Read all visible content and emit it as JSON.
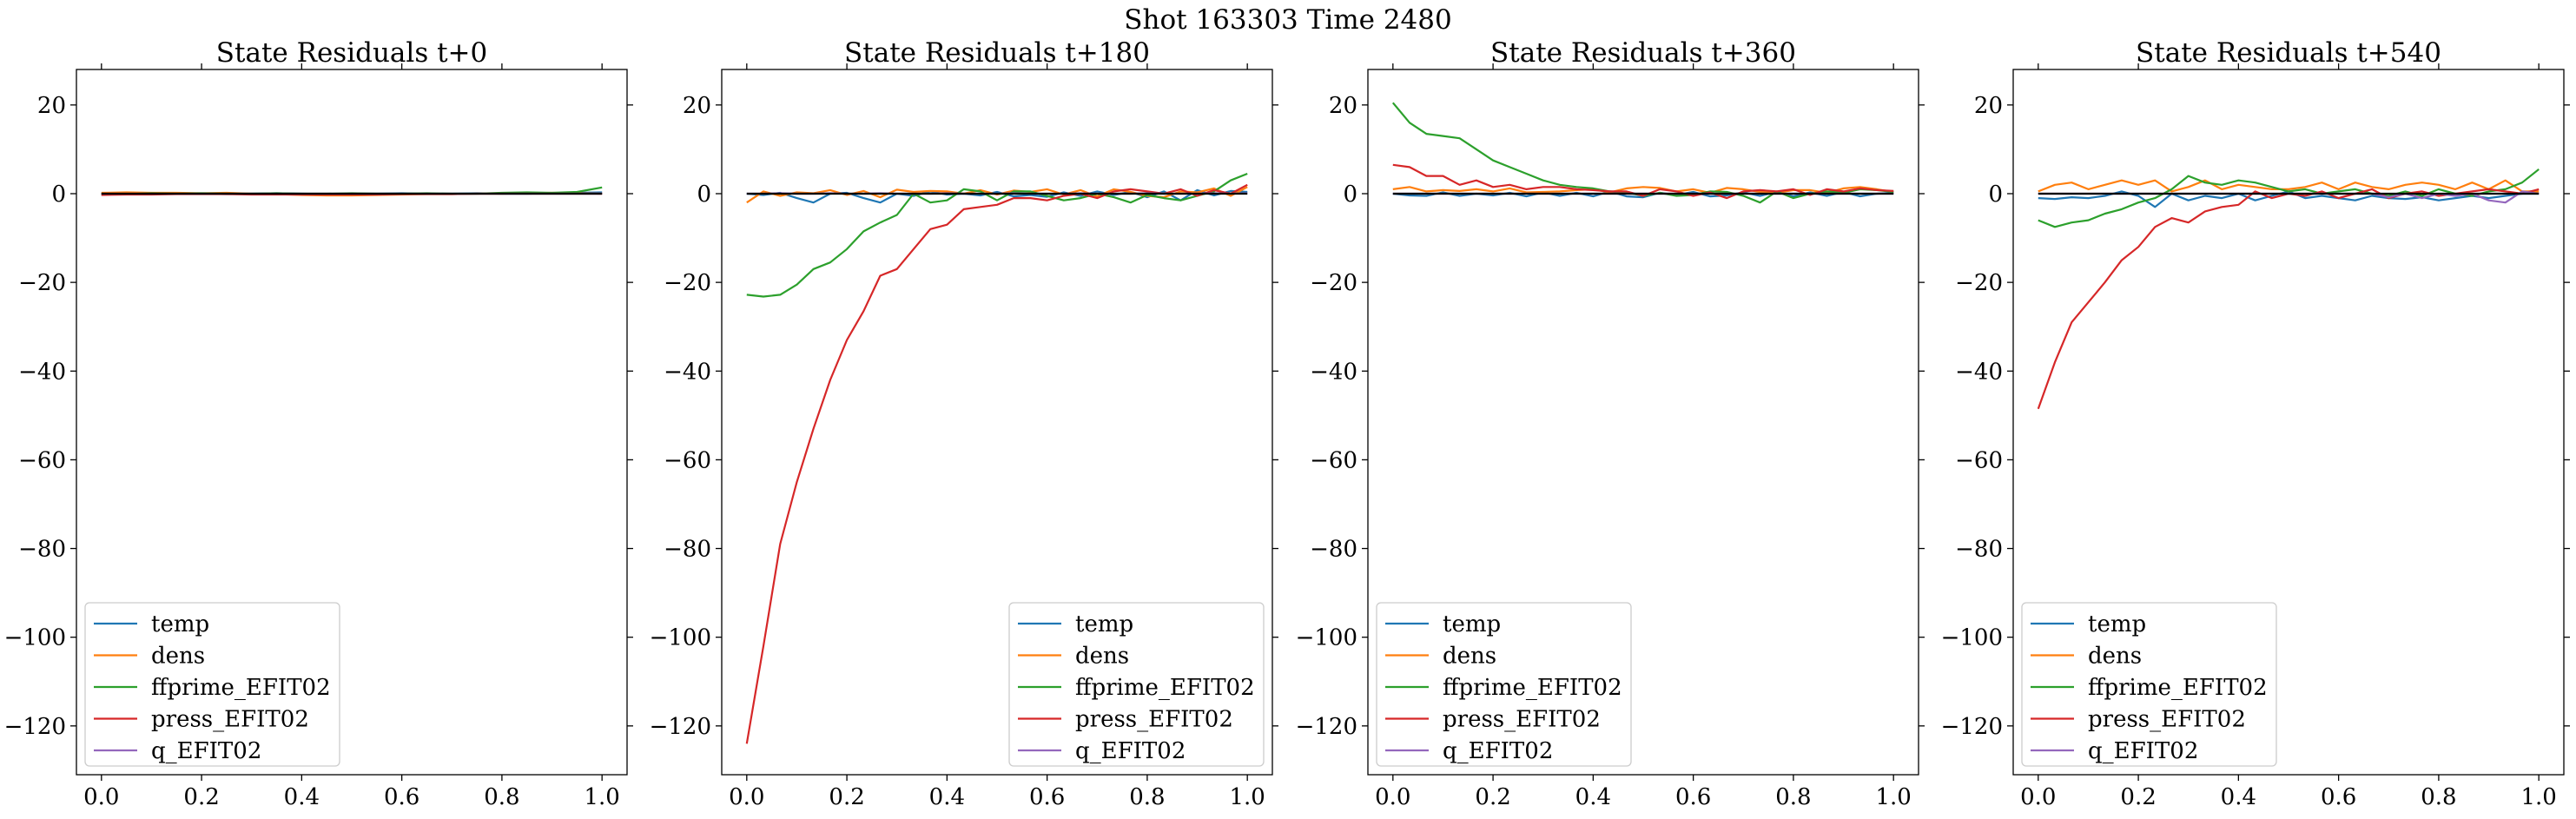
{
  "figure": {
    "title": "Shot 163303   Time 2480"
  },
  "colors": {
    "temp": "#1f77b4",
    "dens": "#ff7f0e",
    "ffprime_EFIT02": "#2ca02c",
    "press_EFIT02": "#d62728",
    "q_EFIT02": "#9467bd",
    "zero_line": "#000000"
  },
  "chart_data": [
    {
      "type": "line",
      "title": "State Residuals t+0",
      "xlabel": "",
      "ylabel": "",
      "xlim": [
        -0.05,
        1.05
      ],
      "ylim": [
        -131,
        28
      ],
      "xticks": [
        "0.0",
        "0.2",
        "0.4",
        "0.6",
        "0.8",
        "1.0"
      ],
      "yticks": [
        "20",
        "0",
        "−20",
        "−40",
        "−60",
        "−80",
        "−100",
        "−120"
      ],
      "legend_position": "lower-left",
      "grid": false,
      "x": [
        0.0,
        0.05,
        0.1,
        0.15,
        0.2,
        0.25,
        0.3,
        0.35,
        0.4,
        0.45,
        0.5,
        0.55,
        0.6,
        0.65,
        0.7,
        0.75,
        0.8,
        0.85,
        0.9,
        0.95,
        1.0
      ],
      "series": [
        {
          "name": "temp",
          "values": [
            -0.2,
            -0.1,
            0.0,
            0.1,
            0.0,
            -0.1,
            0.0,
            0.1,
            0.0,
            -0.1,
            0.0,
            0.0,
            0.1,
            0.0,
            0.0,
            0.1,
            0.0,
            0.0,
            0.1,
            0.2,
            0.3
          ]
        },
        {
          "name": "dens",
          "values": [
            0.2,
            0.3,
            0.2,
            0.2,
            0.1,
            0.2,
            0.0,
            -0.1,
            -0.3,
            -0.4,
            -0.4,
            -0.3,
            -0.2,
            -0.1,
            -0.1,
            0.0,
            0.0,
            0.1,
            0.2,
            0.1,
            0.0
          ]
        },
        {
          "name": "ffprime_EFIT02",
          "values": [
            0.0,
            -0.1,
            0.1,
            0.0,
            0.1,
            0.0,
            0.0,
            0.1,
            0.0,
            0.0,
            0.1,
            0.0,
            0.0,
            0.1,
            0.0,
            0.0,
            0.2,
            0.3,
            0.2,
            0.4,
            1.4
          ]
        },
        {
          "name": "press_EFIT02",
          "values": [
            -0.3,
            -0.2,
            -0.2,
            -0.1,
            -0.1,
            -0.1,
            -0.2,
            -0.2,
            -0.2,
            -0.2,
            -0.2,
            -0.2,
            -0.1,
            -0.1,
            -0.1,
            0.0,
            0.0,
            0.0,
            0.0,
            0.0,
            0.0
          ]
        },
        {
          "name": "q_EFIT02",
          "values": [
            0.0,
            0.0,
            0.0,
            0.0,
            0.0,
            0.0,
            0.0,
            0.0,
            0.0,
            0.0,
            0.0,
            0.0,
            0.0,
            0.0,
            0.0,
            0.0,
            0.0,
            0.0,
            0.0,
            0.0,
            0.0
          ]
        }
      ]
    },
    {
      "type": "line",
      "title": "State Residuals t+180",
      "xlabel": "",
      "ylabel": "",
      "xlim": [
        -0.05,
        1.05
      ],
      "ylim": [
        -131,
        28
      ],
      "xticks": [
        "0.0",
        "0.2",
        "0.4",
        "0.6",
        "0.8",
        "1.0"
      ],
      "yticks": [
        "20",
        "0",
        "−20",
        "−40",
        "−60",
        "−80",
        "−100",
        "−120"
      ],
      "legend_position": "lower-right",
      "grid": false,
      "x": [
        0.0,
        0.0333,
        0.0667,
        0.1,
        0.1333,
        0.1667,
        0.2,
        0.2333,
        0.2667,
        0.3,
        0.3333,
        0.3667,
        0.4,
        0.4333,
        0.4667,
        0.5,
        0.5333,
        0.5667,
        0.6,
        0.6333,
        0.6667,
        0.7,
        0.7333,
        0.7667,
        0.8,
        0.8333,
        0.8667,
        0.9,
        0.9333,
        0.9667,
        1.0
      ],
      "series": [
        {
          "name": "temp",
          "values": [
            0.0,
            -0.3,
            0.2,
            -1.0,
            -2.0,
            0.0,
            0.2,
            -1.0,
            -2.0,
            0.0,
            -0.5,
            0.5,
            -0.2,
            0.0,
            -0.4,
            0.4,
            -0.6,
            -0.3,
            -0.7,
            0.3,
            -0.5,
            0.5,
            -0.3,
            0.4,
            -0.8,
            0.5,
            -1.5,
            0.8,
            -0.4,
            0.6,
            0.4
          ]
        },
        {
          "name": "dens",
          "values": [
            -2.0,
            0.5,
            -0.5,
            0.3,
            0.1,
            0.8,
            -0.3,
            0.6,
            -0.8,
            0.9,
            0.4,
            0.6,
            0.5,
            0.0,
            0.8,
            -0.2,
            0.7,
            0.4,
            1.0,
            -0.2,
            0.8,
            -0.6,
            1.0,
            0.4,
            -0.5,
            -0.8,
            0.5,
            0.3,
            1.2,
            -0.5,
            1.5
          ]
        },
        {
          "name": "ffprime_EFIT02",
          "values": [
            -22.8,
            -23.2,
            -22.8,
            -20.5,
            -17.0,
            -15.5,
            -12.5,
            -8.5,
            -6.5,
            -4.8,
            0.0,
            -2.0,
            -1.5,
            1.0,
            0.5,
            -1.5,
            0.5,
            0.5,
            -0.5,
            -1.5,
            -1.0,
            0.0,
            -0.8,
            -2.0,
            -0.3,
            -1.0,
            -1.5,
            -0.5,
            0.5,
            3.0,
            4.5
          ]
        },
        {
          "name": "press_EFIT02",
          "values": [
            -124.0,
            -102.0,
            -79.0,
            -65.0,
            -53.0,
            -42.0,
            -33.0,
            -26.5,
            -18.5,
            -17.0,
            -12.5,
            -8.0,
            -7.0,
            -3.5,
            -3.0,
            -2.5,
            -1.0,
            -1.0,
            -1.5,
            -0.5,
            0.0,
            -1.0,
            0.5,
            1.0,
            0.5,
            0.0,
            1.0,
            -0.5,
            0.8,
            0.0,
            2.0
          ]
        },
        {
          "name": "q_EFIT02",
          "values": [
            0.0,
            0.0,
            0.1,
            0.0,
            0.0,
            0.1,
            0.0,
            0.0,
            0.1,
            0.0,
            0.0,
            0.0,
            0.1,
            0.0,
            0.0,
            0.0,
            0.1,
            0.0,
            0.0,
            0.0,
            0.1,
            0.0,
            0.0,
            0.0,
            0.1,
            0.0,
            0.0,
            0.0,
            0.1,
            0.0,
            0.1
          ]
        }
      ]
    },
    {
      "type": "line",
      "title": "State Residuals t+360",
      "xlabel": "",
      "ylabel": "",
      "xlim": [
        -0.05,
        1.05
      ],
      "ylim": [
        -131,
        28
      ],
      "xticks": [
        "0.0",
        "0.2",
        "0.4",
        "0.6",
        "0.8",
        "1.0"
      ],
      "yticks": [
        "20",
        "0",
        "−20",
        "−40",
        "−60",
        "−80",
        "−100",
        "−120"
      ],
      "legend_position": "lower-left",
      "grid": false,
      "x": [
        0.0,
        0.0333,
        0.0667,
        0.1,
        0.1333,
        0.1667,
        0.2,
        0.2333,
        0.2667,
        0.3,
        0.3333,
        0.3667,
        0.4,
        0.4333,
        0.4667,
        0.5,
        0.5333,
        0.5667,
        0.6,
        0.6333,
        0.6667,
        0.7,
        0.7333,
        0.7667,
        0.8,
        0.8333,
        0.8667,
        0.9,
        0.9333,
        0.9667,
        1.0
      ],
      "series": [
        {
          "name": "temp",
          "values": [
            0.0,
            -0.4,
            -0.5,
            0.3,
            -0.5,
            0.0,
            -0.4,
            0.2,
            -0.6,
            0.3,
            -0.5,
            0.2,
            -0.6,
            0.5,
            -0.6,
            -0.8,
            0.2,
            -0.3,
            0.4,
            -0.6,
            -0.4,
            0.3,
            -0.5,
            0.4,
            -0.6,
            0.3,
            -0.5,
            0.4,
            -0.6,
            0.0,
            0.2
          ]
        },
        {
          "name": "dens",
          "values": [
            1.0,
            1.5,
            0.5,
            0.8,
            0.6,
            1.0,
            0.5,
            1.2,
            0.3,
            0.4,
            0.5,
            0.8,
            1.0,
            0.3,
            1.2,
            1.5,
            1.3,
            0.5,
            1.0,
            0.2,
            1.3,
            1.0,
            0.4,
            0.2,
            0.8,
            0.8,
            0.2,
            1.2,
            1.5,
            1.0,
            0.4
          ]
        },
        {
          "name": "ffprime_EFIT02",
          "values": [
            20.5,
            16.0,
            13.5,
            13.0,
            12.5,
            10.0,
            7.5,
            6.0,
            4.5,
            3.0,
            2.0,
            1.5,
            1.2,
            0.5,
            0.3,
            -0.5,
            0.2,
            -0.5,
            -0.3,
            0.5,
            0.4,
            -0.5,
            -2.0,
            0.5,
            -1.0,
            0.0,
            0.5,
            0.2,
            1.0,
            0.8,
            0.4
          ]
        },
        {
          "name": "press_EFIT02",
          "values": [
            6.5,
            6.0,
            4.0,
            4.0,
            2.0,
            3.0,
            1.5,
            2.0,
            1.0,
            1.5,
            1.5,
            1.0,
            0.8,
            0.5,
            0.5,
            -0.5,
            1.0,
            0.5,
            -0.5,
            0.3,
            -1.0,
            0.5,
            0.8,
            0.5,
            1.0,
            -0.3,
            1.0,
            0.5,
            1.2,
            0.8,
            0.6
          ]
        },
        {
          "name": "q_EFIT02",
          "values": [
            0.0,
            0.0,
            0.0,
            0.0,
            0.0,
            0.0,
            0.0,
            0.0,
            0.0,
            0.0,
            0.0,
            0.0,
            0.0,
            0.0,
            0.0,
            0.0,
            0.0,
            0.0,
            0.0,
            0.0,
            0.0,
            0.0,
            0.0,
            0.0,
            0.0,
            0.0,
            0.0,
            0.0,
            0.0,
            0.0,
            0.0
          ]
        }
      ]
    },
    {
      "type": "line",
      "title": "State Residuals t+540",
      "xlabel": "",
      "ylabel": "",
      "xlim": [
        -0.05,
        1.05
      ],
      "ylim": [
        -131,
        28
      ],
      "xticks": [
        "0.0",
        "0.2",
        "0.4",
        "0.6",
        "0.8",
        "1.0"
      ],
      "yticks": [
        "20",
        "0",
        "−20",
        "−40",
        "−60",
        "−80",
        "−100",
        "−120"
      ],
      "legend_position": "lower-left",
      "grid": false,
      "x": [
        0.0,
        0.0333,
        0.0667,
        0.1,
        0.1333,
        0.1667,
        0.2,
        0.2333,
        0.2667,
        0.3,
        0.3333,
        0.3667,
        0.4,
        0.4333,
        0.4667,
        0.5,
        0.5333,
        0.5667,
        0.6,
        0.6333,
        0.6667,
        0.7,
        0.7333,
        0.7667,
        0.8,
        0.8333,
        0.8667,
        0.9,
        0.9333,
        0.9667,
        1.0
      ],
      "series": [
        {
          "name": "temp",
          "values": [
            -1.0,
            -1.2,
            -0.8,
            -1.0,
            -0.5,
            0.5,
            -0.5,
            -3.0,
            0.0,
            -1.5,
            -0.5,
            -1.0,
            0.0,
            -1.5,
            -0.5,
            0.5,
            -1.0,
            -0.5,
            -1.0,
            -1.5,
            -0.5,
            -1.0,
            -1.2,
            -0.8,
            -1.5,
            -1.0,
            -0.5,
            -1.0,
            -0.5,
            0.0,
            0.0
          ]
        },
        {
          "name": "dens",
          "values": [
            0.5,
            2.0,
            2.5,
            1.0,
            2.0,
            3.0,
            2.0,
            3.0,
            0.5,
            1.5,
            3.0,
            1.0,
            2.0,
            1.5,
            1.0,
            1.0,
            1.5,
            2.5,
            1.0,
            2.5,
            1.5,
            1.0,
            2.0,
            2.5,
            2.0,
            1.0,
            2.5,
            1.0,
            3.0,
            0.5,
            0.5
          ]
        },
        {
          "name": "ffprime_EFIT02",
          "values": [
            -6.0,
            -7.5,
            -6.5,
            -6.0,
            -4.5,
            -3.5,
            -2.0,
            -1.0,
            1.0,
            4.0,
            2.5,
            2.0,
            3.0,
            2.5,
            1.5,
            0.5,
            1.0,
            0.0,
            0.5,
            1.0,
            0.0,
            -0.5,
            0.5,
            -0.5,
            1.0,
            0.0,
            -0.5,
            0.5,
            1.0,
            2.5,
            5.5
          ]
        },
        {
          "name": "press_EFIT02",
          "values": [
            -48.5,
            -38.0,
            -29.0,
            -24.5,
            -20.0,
            -15.0,
            -12.0,
            -7.5,
            -5.5,
            -6.5,
            -4.0,
            -3.0,
            -2.5,
            0.5,
            -1.0,
            0.0,
            -0.5,
            0.5,
            -1.0,
            0.0,
            1.0,
            -1.0,
            0.0,
            0.5,
            -0.5,
            0.0,
            0.5,
            1.0,
            0.5,
            0.0,
            1.0
          ]
        },
        {
          "name": "q_EFIT02",
          "values": [
            0.0,
            0.0,
            0.0,
            0.0,
            0.0,
            0.0,
            0.0,
            0.0,
            0.0,
            0.0,
            0.0,
            0.0,
            0.0,
            0.0,
            0.0,
            0.0,
            0.0,
            0.0,
            0.0,
            0.0,
            0.0,
            -0.8,
            0.0,
            -1.0,
            0.0,
            -0.5,
            0.0,
            -1.5,
            -2.0,
            0.5,
            0.0
          ]
        }
      ]
    }
  ]
}
